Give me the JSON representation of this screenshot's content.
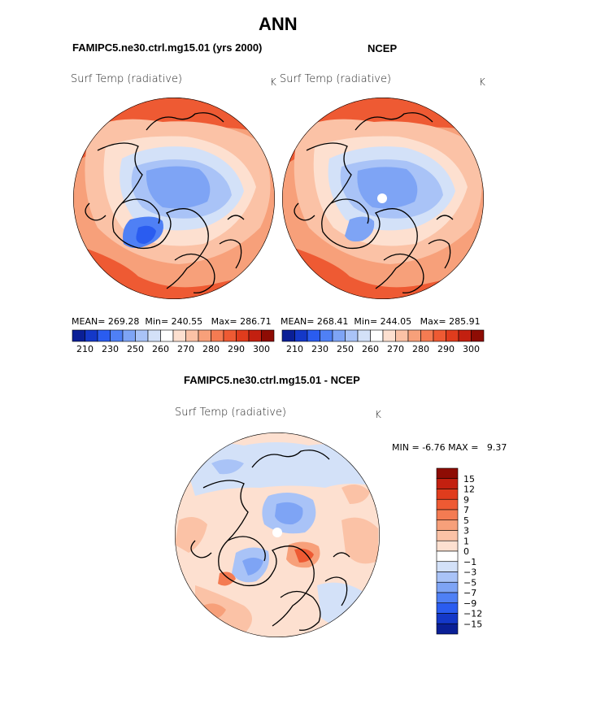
{
  "chart_data": [
    {
      "type": "heatmap",
      "title": "ANN",
      "subtitle": "FAMIPC5.ne30.ctrl.mg15.01 (yrs 2000)",
      "panel_title": "Surf Temp (radiative)",
      "units": "K",
      "stats": {
        "mean_label": "MEAN=",
        "mean": "269.28",
        "min_label": "Min=",
        "min": "240.55",
        "max_label": "Max=",
        "max": "286.71"
      },
      "colorbar_ticks": [
        "210",
        "230",
        "250",
        "260",
        "270",
        "280",
        "290",
        "300"
      ],
      "colorbar_colors": [
        "#0a1f96",
        "#1438c8",
        "#2a5cf0",
        "#4f80f5",
        "#7ea4f5",
        "#a9c3f7",
        "#d3e1f8",
        "#ffffff",
        "#fde0d0",
        "#fbc2a6",
        "#f7a07a",
        "#f47b52",
        "#ee5a33",
        "#e03c1d",
        "#c32010",
        "#8e0c04"
      ]
    },
    {
      "type": "heatmap",
      "subtitle": "NCEP",
      "panel_title": "Surf Temp (radiative)",
      "units": "K",
      "stats": {
        "mean_label": "MEAN=",
        "mean": "268.41",
        "min_label": "Min=",
        "min": "244.05",
        "max_label": "Max=",
        "max": "285.91"
      },
      "colorbar_ticks": [
        "210",
        "230",
        "250",
        "260",
        "270",
        "280",
        "290",
        "300"
      ]
    },
    {
      "type": "heatmap",
      "subtitle": "FAMIPC5.ne30.ctrl.mg15.01 - NCEP",
      "panel_title": "Surf Temp (radiative)",
      "units": "K",
      "range": {
        "min_label": "MIN =",
        "min": "-6.76",
        "max_label": "MAX =",
        "max": "9.37"
      },
      "colorbar_ticks": [
        "15",
        "12",
        "9",
        "7",
        "5",
        "3",
        "1",
        "0",
        "−1",
        "−3",
        "−5",
        "−7",
        "−9",
        "−12",
        "−15"
      ],
      "colorbar_colors": [
        "#8e0c04",
        "#c32010",
        "#e03c1d",
        "#ee5a33",
        "#f47b52",
        "#f7a07a",
        "#fbc2a6",
        "#fde0d0",
        "#ffffff",
        "#d3e1f8",
        "#a9c3f7",
        "#7ea4f5",
        "#4f80f5",
        "#2a5cf0",
        "#1438c8",
        "#0a1f96"
      ]
    }
  ]
}
